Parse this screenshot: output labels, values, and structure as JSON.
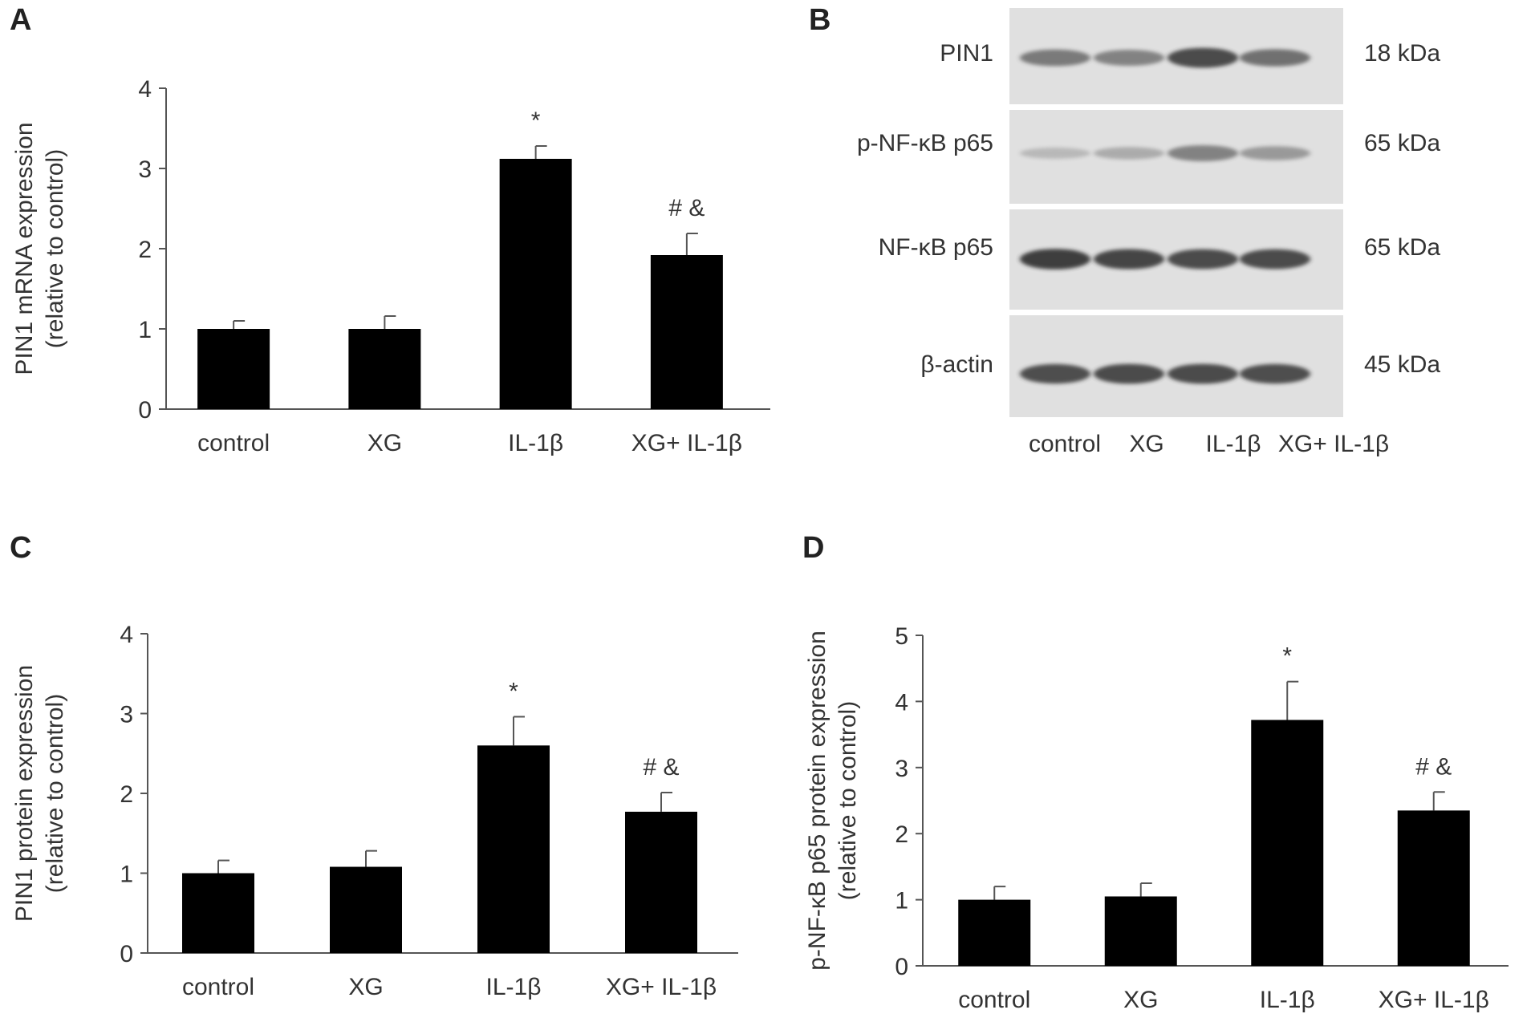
{
  "panels": {
    "A": "A",
    "B": "B",
    "C": "C",
    "D": "D"
  },
  "chart_data": [
    {
      "panel": "A",
      "type": "bar",
      "categories": [
        "control",
        "XG",
        "IL-1β",
        "XG+ IL-1β"
      ],
      "values": [
        1.0,
        1.0,
        3.12,
        1.92
      ],
      "errors": [
        0.1,
        0.16,
        0.16,
        0.27
      ],
      "annotations": [
        "",
        "",
        "*",
        "# &"
      ],
      "ylabel": [
        "PIN1 mRNA expression",
        "(relative to control)"
      ],
      "yticks": [
        0,
        1,
        2,
        3,
        4
      ],
      "ylim": [
        0,
        4
      ],
      "color": "#000000"
    },
    {
      "panel": "C",
      "type": "bar",
      "categories": [
        "control",
        "XG",
        "IL-1β",
        "XG+ IL-1β"
      ],
      "values": [
        1.0,
        1.08,
        2.6,
        1.77
      ],
      "errors": [
        0.16,
        0.2,
        0.36,
        0.24
      ],
      "annotations": [
        "",
        "",
        "*",
        "# &"
      ],
      "ylabel": [
        "PIN1 protein expression",
        "(relative to control)"
      ],
      "yticks": [
        0,
        1,
        2,
        3,
        4
      ],
      "ylim": [
        0,
        4
      ],
      "color": "#000000"
    },
    {
      "panel": "D",
      "type": "bar",
      "categories": [
        "control",
        "XG",
        "IL-1β",
        "XG+ IL-1β"
      ],
      "values": [
        1.0,
        1.05,
        3.72,
        2.35
      ],
      "errors": [
        0.2,
        0.2,
        0.58,
        0.28
      ],
      "annotations": [
        "",
        "",
        "*",
        "# &"
      ],
      "ylabel": [
        "p-NF-κB p65 protein expression",
        "(relative to control)"
      ],
      "yticks": [
        0,
        1,
        2,
        3,
        4,
        5
      ],
      "ylim": [
        0,
        5
      ],
      "color": "#000000"
    }
  ],
  "blot": {
    "rows": [
      {
        "label": "PIN1",
        "kda": "18 kDa",
        "intensity": [
          0.55,
          0.5,
          0.8,
          0.6
        ]
      },
      {
        "label": "p-NF-κB p65",
        "kda": "65 kDa",
        "intensity": [
          0.12,
          0.22,
          0.5,
          0.35
        ]
      },
      {
        "label": "NF-κB p65",
        "kda": "65 kDa",
        "intensity": [
          0.85,
          0.82,
          0.8,
          0.8
        ]
      },
      {
        "label": "β-actin",
        "kda": "45 kDa",
        "intensity": [
          0.78,
          0.8,
          0.8,
          0.78
        ]
      }
    ],
    "lanes": [
      "control",
      "XG",
      "IL-1β",
      "XG+ IL-1β"
    ]
  }
}
